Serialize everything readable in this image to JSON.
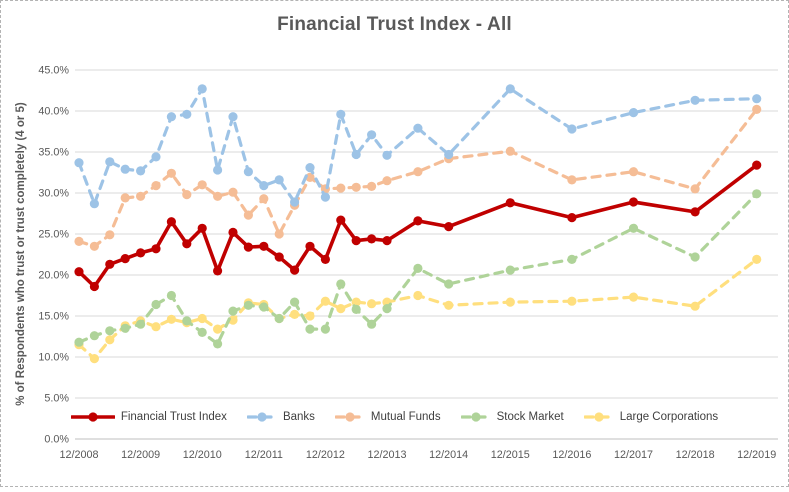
{
  "chart_data": {
    "type": "line",
    "title": "Financial Trust Index - All",
    "ylabel": "% of Respondents who trust or trust completely (4 or 5)",
    "xlabel": "",
    "ylim": [
      0,
      45
    ],
    "grid": "horizontal",
    "legend_position": "bottom",
    "x_tick_labels": [
      "12/2008",
      "12/2009",
      "12/2010",
      "12/2011",
      "12/2012",
      "12/2013",
      "12/2014",
      "12/2015",
      "12/2016",
      "12/2017",
      "12/2018",
      "12/2019"
    ],
    "y_ticks": [
      {
        "value": 0,
        "label": "0.0%"
      },
      {
        "value": 5,
        "label": "5.0%"
      },
      {
        "value": 10,
        "label": "10.0%"
      },
      {
        "value": 15,
        "label": "15.0%"
      },
      {
        "value": 20,
        "label": "20.0%"
      },
      {
        "value": 25,
        "label": "25.0%"
      },
      {
        "value": 30,
        "label": "30.0%"
      },
      {
        "value": 35,
        "label": "35.0%"
      },
      {
        "value": 40,
        "label": "40.0%"
      },
      {
        "value": 45,
        "label": "45.0%"
      }
    ],
    "point_labels": [
      "12/2008",
      "3/2009",
      "6/2009",
      "9/2009",
      "12/2009",
      "3/2010",
      "6/2010",
      "9/2010",
      "12/2010",
      "3/2011",
      "6/2011",
      "9/2011",
      "12/2011",
      "3/2012",
      "6/2012",
      "9/2012",
      "12/2012",
      "3/2013",
      "6/2013",
      "9/2013",
      "12/2013",
      "6/2014",
      "12/2014",
      "12/2015",
      "12/2016",
      "12/2017",
      "12/2018",
      "12/2019"
    ],
    "x_months": [
      0,
      3,
      6,
      9,
      12,
      15,
      18,
      21,
      24,
      27,
      30,
      33,
      36,
      39,
      42,
      45,
      48,
      51,
      54,
      57,
      60,
      66,
      72,
      84,
      96,
      108,
      120,
      132
    ],
    "x_span_months": 132,
    "series": [
      {
        "name": "Financial Trust Index",
        "color": "#C00000",
        "dash": "solid",
        "values": [
          20.4,
          18.6,
          21.3,
          22.0,
          22.7,
          23.2,
          26.5,
          23.8,
          25.7,
          20.5,
          25.2,
          23.4,
          23.5,
          22.2,
          20.6,
          23.5,
          21.9,
          26.7,
          24.2,
          24.4,
          24.2,
          26.6,
          25.9,
          28.8,
          27.0,
          28.9,
          27.7,
          33.4
        ]
      },
      {
        "name": "Banks",
        "color": "#9DC3E6",
        "dash": "dashed",
        "values": [
          33.7,
          28.7,
          33.8,
          32.9,
          32.7,
          34.4,
          39.3,
          39.6,
          42.7,
          32.8,
          39.3,
          32.6,
          30.9,
          31.6,
          28.9,
          33.1,
          29.5,
          39.6,
          34.7,
          37.1,
          34.6,
          37.9,
          34.7,
          42.7,
          37.8,
          39.8,
          41.3,
          41.5
        ]
      },
      {
        "name": "Mutual Funds",
        "color": "#F5BD96",
        "dash": "dashed",
        "values": [
          24.1,
          23.5,
          24.9,
          29.4,
          29.6,
          30.9,
          32.4,
          29.8,
          31.0,
          29.6,
          30.1,
          27.3,
          29.3,
          25.0,
          28.5,
          31.9,
          30.5,
          30.6,
          30.7,
          30.8,
          31.5,
          32.6,
          34.2,
          35.1,
          31.6,
          32.6,
          30.5,
          40.2
        ]
      },
      {
        "name": "Stock Market",
        "color": "#AFD399",
        "dash": "dashed",
        "values": [
          11.8,
          12.6,
          13.2,
          13.5,
          14.0,
          16.4,
          17.5,
          14.4,
          13.0,
          11.6,
          15.6,
          16.3,
          16.1,
          14.7,
          16.7,
          13.4,
          13.4,
          18.9,
          15.8,
          14.0,
          15.9,
          20.8,
          18.9,
          20.6,
          21.9,
          25.7,
          22.2,
          29.9
        ]
      },
      {
        "name": "Large Corporations",
        "color": "#FFDF7E",
        "dash": "dashed",
        "values": [
          11.5,
          9.8,
          12.1,
          13.8,
          14.4,
          13.7,
          14.6,
          14.2,
          14.7,
          13.4,
          14.5,
          16.6,
          16.4,
          14.7,
          15.2,
          15.0,
          16.8,
          15.9,
          16.7,
          16.5,
          16.7,
          17.5,
          16.3,
          16.7,
          16.8,
          17.3,
          16.2,
          21.9
        ]
      }
    ],
    "colors": {
      "gridline": "#D9D9D9",
      "axis_line": "#BFBFBF",
      "tick_text": "#595959",
      "title_text": "#595959",
      "legend_text": "#404040",
      "background": "#FFFFFF"
    }
  }
}
